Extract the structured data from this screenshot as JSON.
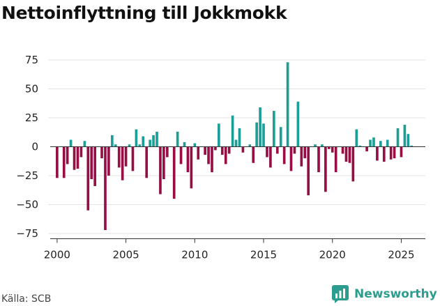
{
  "chart_data": {
    "type": "bar",
    "title": "Nettoinflyttning till Jokkmokk",
    "xlabel": "",
    "ylabel": "",
    "ylim": [
      -80,
      80
    ],
    "yticks": [
      -75,
      -50,
      -25,
      0,
      25,
      50,
      75
    ],
    "ytick_labels": [
      "−75",
      "−50",
      "−25",
      "0",
      "25",
      "50",
      "75"
    ],
    "xlim": [
      1999.5,
      2026.75
    ],
    "xticks": [
      2000,
      2005,
      2010,
      2015,
      2020,
      2025
    ],
    "xtick_labels": [
      "2000",
      "2005",
      "2010",
      "2015",
      "2020",
      "2025"
    ],
    "frequency": "quarterly",
    "start_period": "2000 Q1",
    "positive_color": "#1a9e96",
    "negative_color": "#960e44",
    "values": [
      -27,
      0,
      -27,
      -15,
      6,
      -20,
      -19,
      -9,
      5,
      -55,
      -28,
      -34,
      0,
      -10,
      -72,
      -25,
      10,
      2,
      -18,
      -29,
      -17,
      2,
      -21,
      15,
      2,
      9,
      -27,
      6,
      10,
      13,
      -41,
      -28,
      -9,
      0,
      -45,
      13,
      -15,
      4,
      -22,
      -36,
      3,
      -11,
      0,
      -7,
      -15,
      -22,
      -3,
      20,
      -7,
      -15,
      -6,
      27,
      6,
      16,
      -5,
      0,
      2,
      -14,
      21,
      34,
      20,
      -9,
      -18,
      31,
      -6,
      17,
      -15,
      73,
      -21,
      -6,
      39,
      -17,
      -10,
      -42,
      0,
      2,
      -22,
      2,
      -39,
      -2,
      -5,
      -22,
      0,
      -6,
      -13,
      -14,
      -30,
      15,
      1,
      0,
      -4,
      6,
      8,
      -12,
      5,
      -13,
      6,
      -11,
      -10,
      16,
      -9,
      19,
      11,
      1
    ]
  },
  "source": "Källa: SCB",
  "brand": "Newsworthy",
  "brand_icon": "bar-chart-icon"
}
